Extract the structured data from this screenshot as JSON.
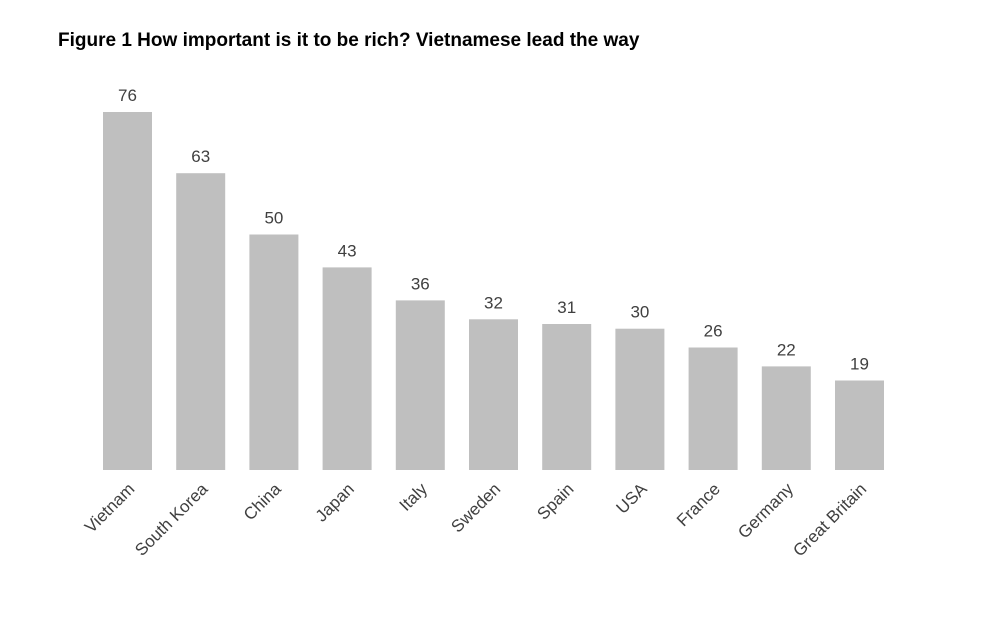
{
  "chart_data": {
    "type": "bar",
    "title": "Figure 1 How important is it to be rich? Vietnamese lead the way",
    "categories": [
      "Vietnam",
      "South Korea",
      "China",
      "Japan",
      "Italy",
      "Sweden",
      "Spain",
      "USA",
      "France",
      "Germany",
      "Great Britain"
    ],
    "values": [
      76,
      63,
      50,
      43,
      36,
      32,
      31,
      30,
      26,
      22,
      19
    ],
    "xlabel": "",
    "ylabel": "",
    "ylim": [
      0,
      76
    ],
    "grid": false,
    "legend": "none",
    "bar_color": "#bfbfbf",
    "label_color": "#404040"
  }
}
